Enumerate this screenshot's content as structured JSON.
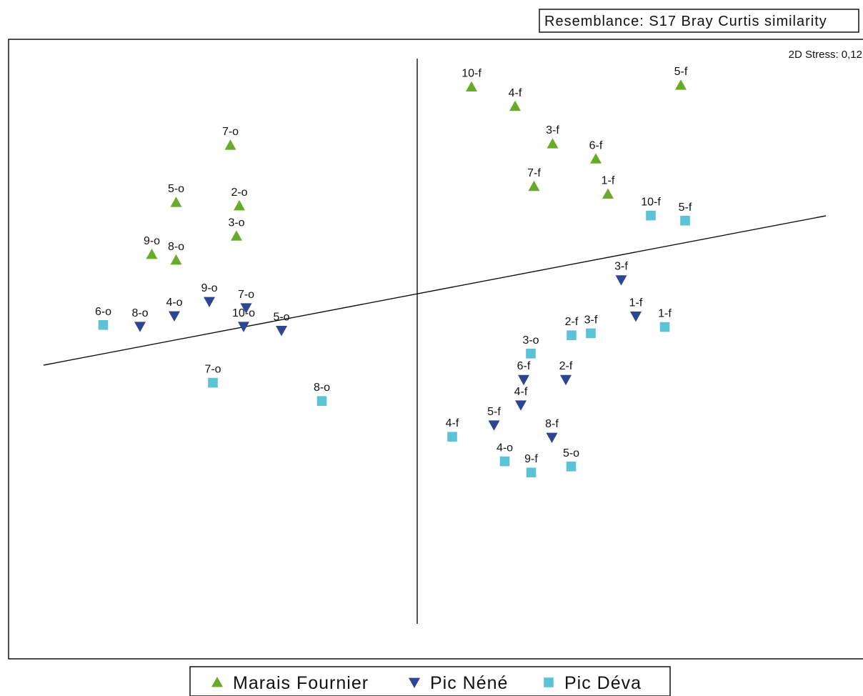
{
  "resemblance_label": "Resemblance: S17 Bray Curtis similarity",
  "stress_label": "2D Stress: 0,12",
  "colors": {
    "Marais Fournier": "#6aaa2a",
    "Pic Néné": "#2e4591",
    "Pic Déva": "#5cc3d6"
  },
  "chart_data": {
    "type": "scatter",
    "title": "",
    "xlabel": "",
    "ylabel": "",
    "stress": "0,12",
    "legend": [
      "Marais Fournier",
      "Pic Néné",
      "Pic Déva"
    ],
    "legend_position": "bottom",
    "xlim": [
      -1,
      1
    ],
    "ylim": [
      -1,
      1
    ],
    "series": [
      {
        "name": "Marais Fournier",
        "marker": "triangle-up",
        "points": [
          {
            "label": "10-f",
            "x": 0.154,
            "y": 0.746
          },
          {
            "label": "5-f",
            "x": 0.74,
            "y": 0.752
          },
          {
            "label": "4-f",
            "x": 0.276,
            "y": 0.678
          },
          {
            "label": "3-f",
            "x": 0.381,
            "y": 0.547
          },
          {
            "label": "6-f",
            "x": 0.502,
            "y": 0.494
          },
          {
            "label": "7-f",
            "x": 0.329,
            "y": 0.398
          },
          {
            "label": "1-f",
            "x": 0.536,
            "y": 0.371
          },
          {
            "label": "7-o",
            "x": -0.521,
            "y": 0.542
          },
          {
            "label": "5-o",
            "x": -0.673,
            "y": 0.342
          },
          {
            "label": "2-o",
            "x": -0.496,
            "y": 0.33
          },
          {
            "label": "3-o",
            "x": -0.504,
            "y": 0.224
          },
          {
            "label": "9-o",
            "x": -0.741,
            "y": 0.16
          },
          {
            "label": "8-o",
            "x": -0.673,
            "y": 0.14
          }
        ]
      },
      {
        "name": "Pic Néné",
        "marker": "triangle-down",
        "points": [
          {
            "label": "3-f",
            "x": 0.573,
            "y": 0.071
          },
          {
            "label": "1-f",
            "x": 0.614,
            "y": -0.056
          },
          {
            "label": "6-f",
            "x": 0.3,
            "y": -0.278
          },
          {
            "label": "2-f",
            "x": 0.418,
            "y": -0.278
          },
          {
            "label": "4-f",
            "x": 0.292,
            "y": -0.367
          },
          {
            "label": "5-f",
            "x": 0.217,
            "y": -0.437
          },
          {
            "label": "8-f",
            "x": 0.379,
            "y": -0.48
          },
          {
            "label": "4-o",
            "x": -0.678,
            "y": -0.055
          },
          {
            "label": "9-o",
            "x": -0.58,
            "y": -0.005
          },
          {
            "label": "7-o",
            "x": -0.477,
            "y": -0.027
          },
          {
            "label": "8-o",
            "x": -0.774,
            "y": -0.092
          },
          {
            "label": "10-o",
            "x": -0.484,
            "y": -0.092
          },
          {
            "label": "5-o",
            "x": -0.378,
            "y": -0.106
          }
        ]
      },
      {
        "name": "Pic Déva",
        "marker": "square",
        "points": [
          {
            "label": "10-f",
            "x": 0.656,
            "y": 0.296
          },
          {
            "label": "5-f",
            "x": 0.752,
            "y": 0.278
          },
          {
            "label": "1-f",
            "x": 0.695,
            "y": -0.094
          },
          {
            "label": "2-f",
            "x": 0.434,
            "y": -0.123
          },
          {
            "label": "3-f",
            "x": 0.488,
            "y": -0.116
          },
          {
            "label": "3-o",
            "x": 0.32,
            "y": -0.187
          },
          {
            "label": "6-o",
            "x": -0.877,
            "y": -0.087
          },
          {
            "label": "7-o",
            "x": -0.57,
            "y": -0.289
          },
          {
            "label": "8-o",
            "x": -0.265,
            "y": -0.353
          },
          {
            "label": "4-f",
            "x": 0.1,
            "y": -0.478
          },
          {
            "label": "4-o",
            "x": 0.247,
            "y": -0.564
          },
          {
            "label": "9-f",
            "x": 0.321,
            "y": -0.603
          },
          {
            "label": "5-o",
            "x": 0.433,
            "y": -0.582
          }
        ]
      }
    ]
  }
}
